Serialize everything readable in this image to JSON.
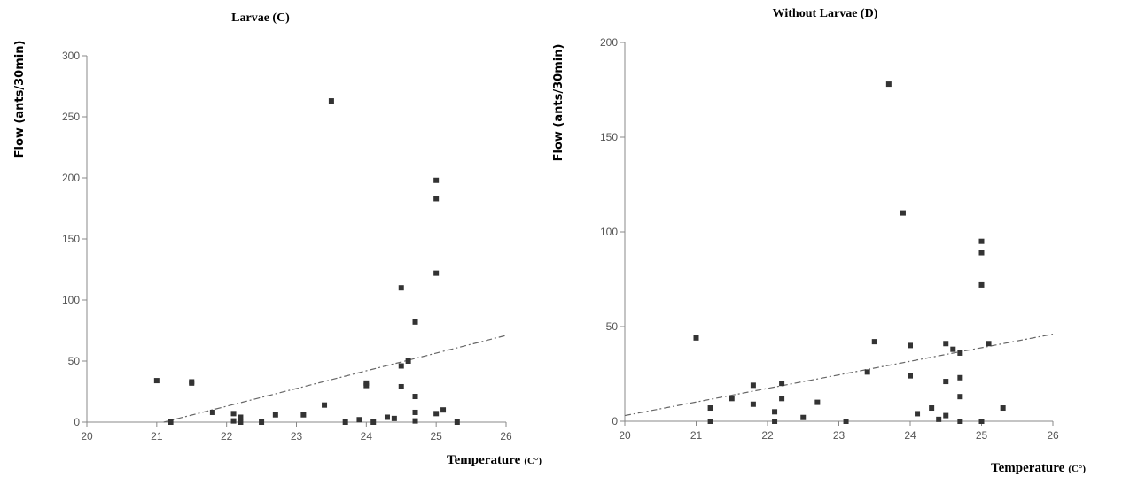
{
  "chart_data": [
    {
      "type": "scatter",
      "title": "Larvae (C)",
      "ylabel": "Flow (ants/30min)",
      "xlabel": "Temperature",
      "xlabel_unit": "(C°)",
      "xlim": [
        20,
        26
      ],
      "ylim": [
        0,
        300
      ],
      "x_ticks": [
        "20",
        "21",
        "22",
        "23",
        "24",
        "25",
        "26"
      ],
      "y_ticks": [
        "0",
        "50",
        "100",
        "150",
        "200",
        "250",
        "300"
      ],
      "grid": false,
      "trendline": {
        "x": [
          21.1,
          26
        ],
        "y": [
          0,
          71
        ]
      },
      "points": [
        {
          "x": 21.0,
          "y": 34
        },
        {
          "x": 21.2,
          "y": 0
        },
        {
          "x": 21.5,
          "y": 33
        },
        {
          "x": 21.5,
          "y": 32
        },
        {
          "x": 21.8,
          "y": 8
        },
        {
          "x": 22.1,
          "y": 7
        },
        {
          "x": 22.1,
          "y": 1
        },
        {
          "x": 22.2,
          "y": 4
        },
        {
          "x": 22.2,
          "y": 0
        },
        {
          "x": 22.5,
          "y": 0
        },
        {
          "x": 22.7,
          "y": 6
        },
        {
          "x": 23.1,
          "y": 6
        },
        {
          "x": 23.4,
          "y": 14
        },
        {
          "x": 23.5,
          "y": 263
        },
        {
          "x": 23.7,
          "y": 0
        },
        {
          "x": 23.9,
          "y": 2
        },
        {
          "x": 24.0,
          "y": 32
        },
        {
          "x": 24.0,
          "y": 30
        },
        {
          "x": 24.1,
          "y": 0
        },
        {
          "x": 24.3,
          "y": 4
        },
        {
          "x": 24.4,
          "y": 3
        },
        {
          "x": 24.5,
          "y": 110
        },
        {
          "x": 24.5,
          "y": 46
        },
        {
          "x": 24.5,
          "y": 29
        },
        {
          "x": 24.6,
          "y": 50
        },
        {
          "x": 24.7,
          "y": 82
        },
        {
          "x": 24.7,
          "y": 21
        },
        {
          "x": 24.7,
          "y": 8
        },
        {
          "x": 24.7,
          "y": 1
        },
        {
          "x": 25.0,
          "y": 198
        },
        {
          "x": 25.0,
          "y": 183
        },
        {
          "x": 25.0,
          "y": 122
        },
        {
          "x": 25.0,
          "y": 7
        },
        {
          "x": 25.1,
          "y": 10
        },
        {
          "x": 25.3,
          "y": 0
        }
      ]
    },
    {
      "type": "scatter",
      "title": "Without Larvae (D)",
      "ylabel": "Flow (ants/30min)",
      "xlabel": "Temperature",
      "xlabel_unit": "(C°)",
      "xlim": [
        20,
        26
      ],
      "ylim": [
        0,
        200
      ],
      "x_ticks": [
        "20",
        "21",
        "22",
        "23",
        "24",
        "25",
        "26"
      ],
      "y_ticks": [
        "0",
        "50",
        "100",
        "150",
        "200"
      ],
      "grid": false,
      "trendline": {
        "x": [
          20,
          26
        ],
        "y": [
          3,
          46
        ]
      },
      "points": [
        {
          "x": 21.0,
          "y": 44
        },
        {
          "x": 21.2,
          "y": 7
        },
        {
          "x": 21.2,
          "y": 0
        },
        {
          "x": 21.5,
          "y": 12
        },
        {
          "x": 21.8,
          "y": 19
        },
        {
          "x": 21.8,
          "y": 9
        },
        {
          "x": 22.1,
          "y": 5
        },
        {
          "x": 22.1,
          "y": 0
        },
        {
          "x": 22.2,
          "y": 20
        },
        {
          "x": 22.2,
          "y": 12
        },
        {
          "x": 22.5,
          "y": 2
        },
        {
          "x": 22.7,
          "y": 10
        },
        {
          "x": 23.1,
          "y": 0
        },
        {
          "x": 23.4,
          "y": 26
        },
        {
          "x": 23.5,
          "y": 42
        },
        {
          "x": 23.7,
          "y": 178
        },
        {
          "x": 23.9,
          "y": 110
        },
        {
          "x": 24.0,
          "y": 40
        },
        {
          "x": 24.0,
          "y": 24
        },
        {
          "x": 24.1,
          "y": 4
        },
        {
          "x": 24.3,
          "y": 7
        },
        {
          "x": 24.4,
          "y": 1
        },
        {
          "x": 24.5,
          "y": 41
        },
        {
          "x": 24.5,
          "y": 21
        },
        {
          "x": 24.5,
          "y": 3
        },
        {
          "x": 24.6,
          "y": 38
        },
        {
          "x": 24.7,
          "y": 36
        },
        {
          "x": 24.7,
          "y": 23
        },
        {
          "x": 24.7,
          "y": 13
        },
        {
          "x": 24.7,
          "y": 0
        },
        {
          "x": 25.0,
          "y": 95
        },
        {
          "x": 25.0,
          "y": 89
        },
        {
          "x": 25.0,
          "y": 72
        },
        {
          "x": 25.0,
          "y": 0
        },
        {
          "x": 25.1,
          "y": 41
        },
        {
          "x": 25.3,
          "y": 7
        }
      ]
    }
  ]
}
